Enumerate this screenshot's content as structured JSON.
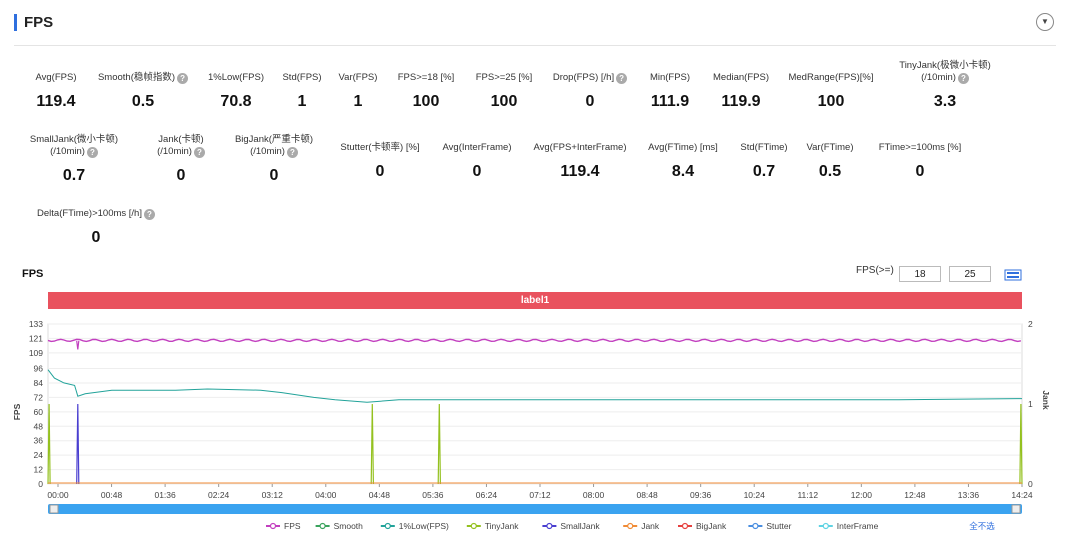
{
  "header": {
    "title": "FPS",
    "toggle_icon": "chevron-down-icon",
    "accent": "#2f6fde"
  },
  "stats": [
    {
      "label": "Avg(FPS)",
      "value": "119.4",
      "help": false
    },
    {
      "label": "Smooth(稳帧指数)",
      "value": "0.5",
      "help": true
    },
    {
      "label": "1%Low(FPS)",
      "value": "70.8",
      "help": false
    },
    {
      "label": "Std(FPS)",
      "value": "1",
      "help": false
    },
    {
      "label": "Var(FPS)",
      "value": "1",
      "help": false
    },
    {
      "label": "FPS>=18 [%]",
      "value": "100",
      "help": false
    },
    {
      "label": "FPS>=25 [%]",
      "value": "100",
      "help": false
    },
    {
      "label": "Drop(FPS) [/h]",
      "value": "0",
      "help": true
    },
    {
      "label": "Min(FPS)",
      "value": "111.9",
      "help": false
    },
    {
      "label": "Median(FPS)",
      "value": "119.9",
      "help": false
    },
    {
      "label": "MedRange(FPS)[%]",
      "value": "100",
      "help": false
    },
    {
      "label": "TinyJank(极微小卡顿)",
      "label2": "(/10min)",
      "value": "3.3",
      "help": true
    },
    {
      "label": "SmallJank(微小卡顿)",
      "label2": "(/10min)",
      "value": "0.7",
      "help": true
    },
    {
      "label": "Jank(卡顿)",
      "label2": "(/10min)",
      "value": "0",
      "help": true
    },
    {
      "label": "BigJank(严重卡顿)",
      "label2": "(/10min)",
      "value": "0",
      "help": true
    },
    {
      "label": "Stutter(卡顿率) [%]",
      "value": "0",
      "help": false
    },
    {
      "label": "Avg(InterFrame)",
      "value": "0",
      "help": false
    },
    {
      "label": "Avg(FPS+InterFrame)",
      "value": "119.4",
      "help": false
    },
    {
      "label": "Avg(FTime) [ms]",
      "value": "8.4",
      "help": false
    },
    {
      "label": "Std(FTime)",
      "value": "0.7",
      "help": false
    },
    {
      "label": "Var(FTime)",
      "value": "0.5",
      "help": false
    },
    {
      "label": "FTime>=100ms [%]",
      "value": "0",
      "help": false
    },
    {
      "label": "Delta(FTime)>100ms [/h]",
      "value": "0",
      "help": true
    }
  ],
  "chart": {
    "title": "FPS",
    "filter_label": "FPS(>=)",
    "filter_values": [
      "18",
      "25"
    ],
    "band_label": "label1",
    "band_color": "#e9525e",
    "y_left_label": "FPS",
    "y_right_label": "Jank",
    "select_all": "全不选"
  },
  "chart_data": {
    "type": "line",
    "x_ticks": [
      "00:00",
      "00:48",
      "01:36",
      "02:24",
      "03:12",
      "04:00",
      "04:48",
      "05:36",
      "06:24",
      "07:12",
      "08:00",
      "08:48",
      "09:36",
      "10:24",
      "11:12",
      "12:00",
      "12:48",
      "13:36",
      "14:24"
    ],
    "y_left_ticks": [
      0,
      12,
      24,
      36,
      48,
      60,
      72,
      84,
      96,
      109,
      121,
      133
    ],
    "y_left_range": [
      0,
      133
    ],
    "y_right_ticks": [
      0,
      1,
      2
    ],
    "y_right_range": [
      0,
      2
    ],
    "x_range_seconds": [
      0,
      916
    ],
    "series": [
      {
        "name": "FPS",
        "color": "#c23fbf",
        "axis": "left",
        "points": [
          [
            0,
            119.5
          ],
          [
            120,
            119.4
          ],
          [
            300,
            119.3
          ],
          [
            500,
            119.5
          ],
          [
            700,
            119.4
          ],
          [
            916,
            119.5
          ]
        ],
        "dips": [
          [
            28,
            111.9
          ]
        ]
      },
      {
        "name": "Smooth",
        "color": "#3aa35d",
        "axis": "left",
        "points": []
      },
      {
        "name": "1%Low(FPS)",
        "color": "#22a39a",
        "axis": "left",
        "points": [
          [
            0,
            95
          ],
          [
            6,
            88
          ],
          [
            15,
            84
          ],
          [
            25,
            82
          ],
          [
            28,
            73
          ],
          [
            35,
            75
          ],
          [
            60,
            78
          ],
          [
            120,
            78
          ],
          [
            150,
            79
          ],
          [
            200,
            78
          ],
          [
            220,
            76
          ],
          [
            250,
            72
          ],
          [
            270,
            70
          ],
          [
            300,
            68
          ],
          [
            330,
            70
          ],
          [
            400,
            70
          ],
          [
            500,
            70
          ],
          [
            700,
            70
          ],
          [
            800,
            70
          ],
          [
            916,
            71
          ]
        ]
      },
      {
        "name": "TinyJank",
        "color": "#94c11f",
        "axis": "right",
        "spikes": [
          [
            1,
            1
          ],
          [
            305,
            1
          ],
          [
            368,
            1
          ],
          [
            915,
            1
          ]
        ]
      },
      {
        "name": "SmallJank",
        "color": "#4a3fd0",
        "axis": "right",
        "spikes": [
          [
            28,
            1
          ]
        ]
      },
      {
        "name": "Jank",
        "color": "#f08b35",
        "axis": "right",
        "spikes": []
      },
      {
        "name": "BigJank",
        "color": "#e6413f",
        "axis": "right",
        "spikes": []
      },
      {
        "name": "Stutter",
        "color": "#4a8ee0",
        "axis": "right",
        "spikes": []
      },
      {
        "name": "InterFrame",
        "color": "#5fd3e3",
        "axis": "left",
        "spikes": []
      }
    ]
  }
}
